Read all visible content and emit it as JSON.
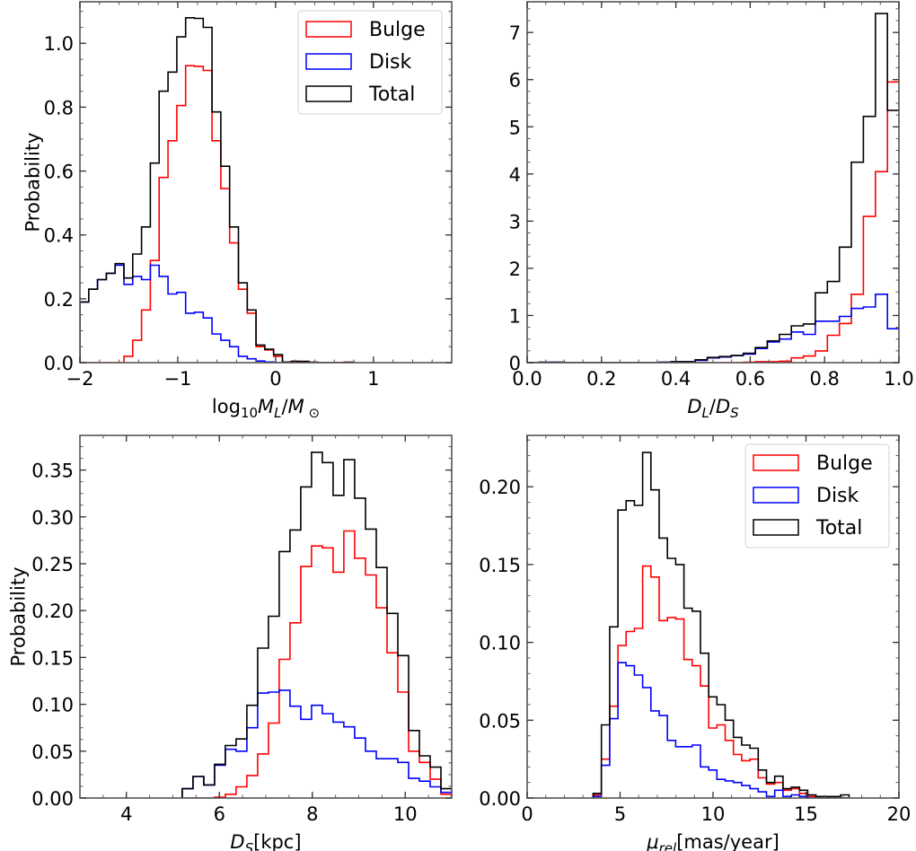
{
  "colors": {
    "bulge": "#ff0000",
    "disk": "#0000ff",
    "total": "#000000",
    "frame": "#555555"
  },
  "chart_data": [
    {
      "type": "bar",
      "id": "mass",
      "title": "",
      "xlabel": "log10 M_L / M_sun",
      "xlabel_parts": {
        "base": "log",
        "sub1": "10",
        "main": "M",
        "sub2": "L",
        "slash": "/",
        "main2": "M",
        "sub3": "⊙"
      },
      "ylabel": "Probability",
      "xlim": [
        -2,
        1.8
      ],
      "ylim": [
        0,
        1.13
      ],
      "xticks": [
        -2,
        -1,
        0,
        1
      ],
      "xtick_labels": [
        "−2",
        "−1",
        "0",
        "1"
      ],
      "xminor": 0.2,
      "yticks": [
        0.0,
        0.2,
        0.4,
        0.6,
        0.8,
        1.0
      ],
      "ytick_labels": [
        "0.0",
        "0.2",
        "0.4",
        "0.6",
        "0.8",
        "1.0"
      ],
      "yminor": 0.05,
      "legend": {
        "show": true,
        "placement": "top-right",
        "entries": [
          "Bulge",
          "Disk",
          "Total"
        ]
      },
      "bin_start": -2.0,
      "bin_width": 0.09,
      "series": [
        {
          "name": "Bulge",
          "values": [
            0,
            0,
            0,
            0,
            0.0,
            0.02,
            0.07,
            0.165,
            0.32,
            0.58,
            0.695,
            0.805,
            0.93,
            0.928,
            0.915,
            0.695,
            0.545,
            0.375,
            0.23,
            0.155,
            0.05,
            0.04,
            0.02,
            0.002,
            0.004,
            0.003,
            0.001,
            0,
            0,
            0,
            0.001
          ]
        },
        {
          "name": "Disk",
          "values": [
            0.19,
            0.23,
            0.26,
            0.28,
            0.305,
            0.245,
            0.27,
            0.26,
            0.305,
            0.27,
            0.215,
            0.22,
            0.155,
            0.158,
            0.14,
            0.09,
            0.07,
            0.05,
            0.02,
            0.012,
            0.005,
            0.002,
            0,
            0,
            0,
            0,
            0,
            0,
            0,
            0,
            0
          ]
        },
        {
          "name": "Total",
          "values": [
            0.19,
            0.23,
            0.26,
            0.28,
            0.31,
            0.265,
            0.34,
            0.425,
            0.625,
            0.85,
            0.91,
            1.02,
            1.08,
            1.078,
            1.05,
            0.785,
            0.615,
            0.425,
            0.25,
            0.165,
            0.055,
            0.042,
            0.025,
            0.002,
            0.004,
            0.004,
            0.001,
            0,
            0,
            0,
            0.001
          ]
        }
      ]
    },
    {
      "type": "bar",
      "id": "ratio",
      "title": "",
      "xlabel": "D_L / D_S",
      "xlabel_parts": {
        "main": "D",
        "sub1": "L",
        "slash": "/",
        "main2": "D",
        "sub2": "S"
      },
      "ylabel": "",
      "xlim": [
        0,
        1.0
      ],
      "ylim": [
        0,
        7.65
      ],
      "xticks": [
        0.0,
        0.2,
        0.4,
        0.6,
        0.8,
        1.0
      ],
      "xtick_labels": [
        "0.0",
        "0.2",
        "0.4",
        "0.6",
        "0.8",
        "1.0"
      ],
      "xminor": 0.05,
      "yticks": [
        0,
        1,
        2,
        3,
        4,
        5,
        6,
        7
      ],
      "ytick_labels": [
        "0",
        "1",
        "2",
        "3",
        "4",
        "5",
        "6",
        "7"
      ],
      "yminor": 0.25,
      "legend": {
        "show": false
      },
      "bin_start": 0.0,
      "bin_width": 0.0323,
      "series": [
        {
          "name": "Bulge",
          "values": [
            0,
            0,
            0,
            0,
            0,
            0,
            0,
            0,
            0,
            0,
            0,
            0,
            0,
            0,
            0,
            0,
            0,
            0,
            0.01,
            0.02,
            0.02,
            0.03,
            0.1,
            0.14,
            0.25,
            0.58,
            0.83,
            1.45,
            3.1,
            4.05,
            5.95,
            4.65
          ]
        },
        {
          "name": "Disk",
          "values": [
            0,
            0.01,
            0.01,
            0,
            0,
            0,
            0,
            0,
            0,
            0,
            0,
            0.01,
            0.02,
            0.02,
            0.05,
            0.1,
            0.12,
            0.15,
            0.18,
            0.3,
            0.44,
            0.5,
            0.65,
            0.6,
            0.88,
            0.88,
            0.98,
            1.15,
            1.18,
            1.45,
            0.72,
            0.72
          ]
        },
        {
          "name": "Total",
          "values": [
            0,
            0.01,
            0.01,
            0,
            0,
            0,
            0,
            0,
            0,
            0,
            0,
            0.01,
            0.02,
            0.02,
            0.06,
            0.11,
            0.13,
            0.15,
            0.2,
            0.32,
            0.46,
            0.6,
            0.78,
            0.82,
            1.48,
            1.72,
            2.45,
            4.25,
            5.22,
            7.4,
            5.35,
            5.35
          ]
        }
      ]
    },
    {
      "type": "bar",
      "id": "source-distance",
      "title": "",
      "xlabel": "D_S [kpc]",
      "xlabel_parts": {
        "main": "D",
        "sub1": "S",
        "rest": "[kpc]"
      },
      "ylabel": "Probability",
      "xlim": [
        3,
        11
      ],
      "ylim": [
        0,
        0.387
      ],
      "xticks": [
        4,
        6,
        8,
        10
      ],
      "xtick_labels": [
        "4",
        "6",
        "8",
        "10"
      ],
      "xminor": 0.5,
      "yticks": [
        0.0,
        0.05,
        0.1,
        0.15,
        0.2,
        0.25,
        0.3,
        0.35
      ],
      "ytick_labels": [
        "0.00",
        "0.05",
        "0.10",
        "0.15",
        "0.20",
        "0.25",
        "0.30",
        "0.35"
      ],
      "yminor": 0.0125,
      "legend": {
        "show": false
      },
      "bin_start": 5.2,
      "bin_width": 0.232,
      "series": [
        {
          "name": "Bulge",
          "values": [
            0,
            0,
            0.0,
            0.001,
            0.004,
            0.012,
            0.024,
            0.047,
            0.08,
            0.148,
            0.187,
            0.247,
            0.269,
            0.267,
            0.241,
            0.285,
            0.256,
            0.238,
            0.203,
            0.155,
            0.113,
            0.05,
            0.038,
            0.02,
            0.004
          ]
        },
        {
          "name": "Disk",
          "values": [
            0.01,
            0.023,
            0.014,
            0.035,
            0.052,
            0.05,
            0.075,
            0.112,
            0.113,
            0.115,
            0.098,
            0.084,
            0.099,
            0.09,
            0.081,
            0.076,
            0.064,
            0.05,
            0.042,
            0.042,
            0.038,
            0.021,
            0.018,
            0.012,
            0.006
          ]
        },
        {
          "name": "Total",
          "values": [
            0.01,
            0.023,
            0.014,
            0.036,
            0.056,
            0.063,
            0.099,
            0.16,
            0.194,
            0.263,
            0.286,
            0.332,
            0.369,
            0.358,
            0.323,
            0.361,
            0.32,
            0.287,
            0.246,
            0.197,
            0.152,
            0.072,
            0.045,
            0.033,
            0.01
          ]
        }
      ]
    },
    {
      "type": "bar",
      "id": "proper-motion",
      "title": "",
      "xlabel": "mu_rel [mas/year]",
      "xlabel_parts": {
        "main": "μ",
        "sub1": "rel",
        "rest": "[mas/year]"
      },
      "ylabel": "",
      "xlim": [
        0,
        20
      ],
      "ylim": [
        0,
        0.233
      ],
      "xticks": [
        0,
        5,
        10,
        15,
        20
      ],
      "xtick_labels": [
        "0",
        "5",
        "10",
        "15",
        "20"
      ],
      "xminor": 1,
      "yticks": [
        0.0,
        0.05,
        0.1,
        0.15,
        0.2
      ],
      "ytick_labels": [
        "0.00",
        "0.05",
        "0.10",
        "0.15",
        "0.20"
      ],
      "yminor": 0.01,
      "legend": {
        "show": true,
        "placement": "top-right",
        "entries": [
          "Bulge",
          "Disk",
          "Total"
        ]
      },
      "bin_start": 3.55,
      "bin_width": 0.444,
      "series": [
        {
          "name": "Bulge",
          "values": [
            0.002,
            0.025,
            0.059,
            0.098,
            0.107,
            0.109,
            0.149,
            0.142,
            0.114,
            0.116,
            0.115,
            0.089,
            0.085,
            0.072,
            0.045,
            0.047,
            0.037,
            0.028,
            0.024,
            0.025,
            0.013,
            0.009,
            0.01,
            0.005,
            0.006,
            0.003,
            0.001,
            0,
            0,
            0,
            0
          ]
        },
        {
          "name": "Disk",
          "values": [
            0.001,
            0.021,
            0.051,
            0.087,
            0.085,
            0.079,
            0.071,
            0.056,
            0.053,
            0.037,
            0.033,
            0.033,
            0.034,
            0.02,
            0.018,
            0.012,
            0.011,
            0.01,
            0.008,
            0.006,
            0.004,
            0.001,
            0.005,
            0.001,
            0.002,
            0.001,
            0,
            0,
            0,
            0,
            0
          ]
        },
        {
          "name": "Total",
          "values": [
            0.003,
            0.047,
            0.11,
            0.185,
            0.191,
            0.188,
            0.222,
            0.198,
            0.167,
            0.154,
            0.15,
            0.122,
            0.12,
            0.093,
            0.065,
            0.06,
            0.05,
            0.039,
            0.034,
            0.032,
            0.018,
            0.01,
            0.014,
            0.006,
            0.007,
            0.005,
            0.002,
            0.001,
            0.001,
            0.001,
            0.002
          ]
        }
      ]
    }
  ]
}
